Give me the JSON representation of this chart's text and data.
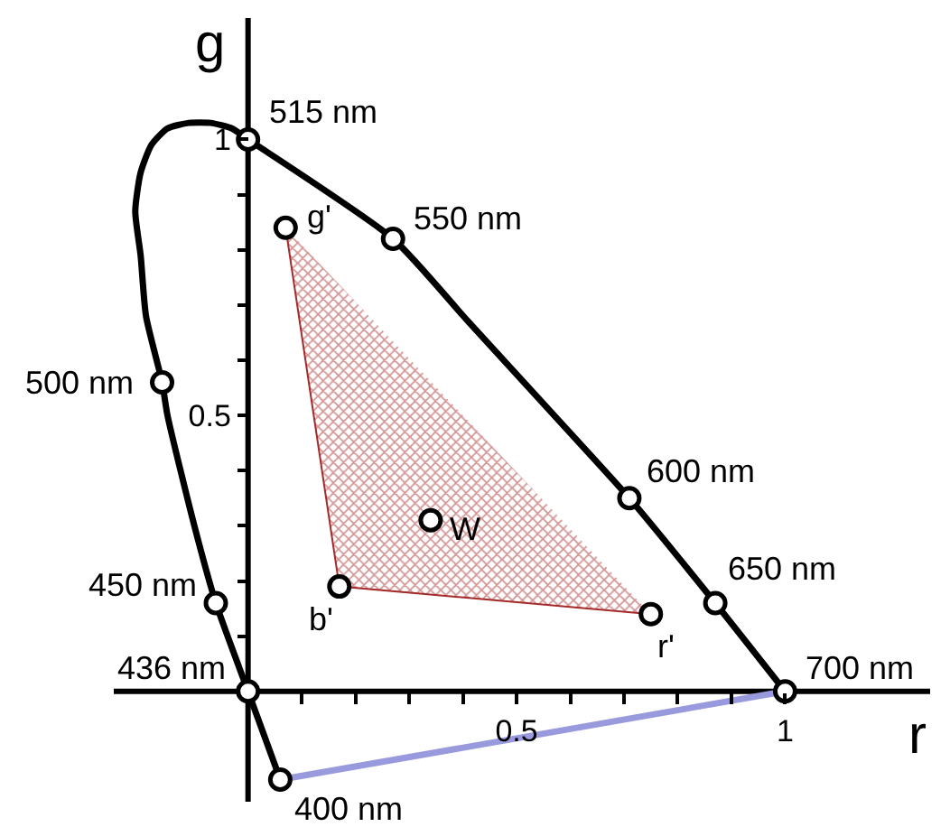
{
  "chart_data": {
    "type": "line",
    "xlabel": "r",
    "ylabel": "g",
    "xlim": [
      -0.25,
      1.27
    ],
    "ylim": [
      -0.2,
      1.22
    ],
    "xticks": [
      {
        "value": 0.1,
        "label": null
      },
      {
        "value": 0.2,
        "label": null
      },
      {
        "value": 0.3,
        "label": null
      },
      {
        "value": 0.4,
        "label": null
      },
      0.5,
      {
        "value": 0.6,
        "label": null
      },
      {
        "value": 0.7,
        "label": null
      },
      {
        "value": 0.8,
        "label": null
      },
      {
        "value": 0.9,
        "label": null
      },
      1
    ],
    "yticks": [
      {
        "value": 0.1,
        "label": null
      },
      {
        "value": 0.2,
        "label": null
      },
      {
        "value": 0.3,
        "label": null
      },
      {
        "value": 0.4,
        "label": null
      },
      0.5,
      {
        "value": 0.6,
        "label": null
      },
      {
        "value": 0.7,
        "label": null
      },
      {
        "value": 0.8,
        "label": null
      },
      {
        "value": 0.9,
        "label": null
      },
      1
    ],
    "series": [
      {
        "type": "area",
        "color": "#a52a2a",
        "x": [
          0.07,
          0.17,
          0.75
        ],
        "values": [
          0.84,
          0.19,
          0.14
        ]
      },
      {
        "type": "line",
        "color": "#9999dd",
        "x": [
          0.06,
          1
        ],
        "values": [
          -0.16,
          0
        ]
      },
      {
        "color": "#000000",
        "x": [
          0.06,
          0,
          -0.06,
          -0.1,
          -0.15,
          -0.16,
          -0.19,
          -0.2,
          -0.21,
          -0.2,
          -0.18,
          -0.15,
          -0.11,
          -0.07,
          -0.03,
          0,
          0.27,
          0.41,
          0.57,
          0.71,
          0.87,
          1
        ],
        "values": [
          -0.16,
          0,
          0.16,
          0.3,
          0.5,
          0.56,
          0.68,
          0.79,
          0.87,
          0.94,
          0.99,
          1.02,
          1.03,
          1.03,
          1.02,
          1,
          0.82,
          0.67,
          0.5,
          0.35,
          0.16,
          0
        ]
      },
      {
        "type": "scatter",
        "color": "#000000",
        "marker": "circle",
        "x": [
          0,
          0.27,
          -0.16,
          -0.06,
          0,
          0.06,
          0.71,
          0.87,
          1,
          0.07,
          0.17,
          0.75,
          0.34
        ],
        "values": [
          1,
          0.82,
          0.56,
          0.16,
          0,
          -0.16,
          0.35,
          0.16,
          0,
          0.84,
          0.19,
          0.14,
          0.31
        ]
      }
    ],
    "annotations": [
      {
        "text": "515 nm",
        "x": 0,
        "y": 1
      },
      {
        "text": "550 nm",
        "x": 0.27,
        "y": 0.82
      },
      {
        "text": "500 nm",
        "x": -0.16,
        "y": 0.56
      },
      {
        "text": "450 nm",
        "x": -0.06,
        "y": 0.16
      },
      {
        "text": "436 nm",
        "x": 0,
        "y": 0
      },
      {
        "text": "400 nm",
        "x": 0.06,
        "y": -0.16
      },
      {
        "text": "600 nm",
        "x": 0.71,
        "y": 0.35
      },
      {
        "text": "650 nm",
        "x": 0.87,
        "y": 0.16
      },
      {
        "text": "700 nm",
        "x": 1,
        "y": 0
      },
      {
        "text": "g'",
        "x": 0.07,
        "y": 0.84
      },
      {
        "text": "b'",
        "x": 0.17,
        "y": 0.19
      },
      {
        "text": "r'",
        "x": 0.75,
        "y": 0.14
      },
      {
        "text": "W",
        "x": 0.34,
        "y": 0.31
      }
    ]
  }
}
